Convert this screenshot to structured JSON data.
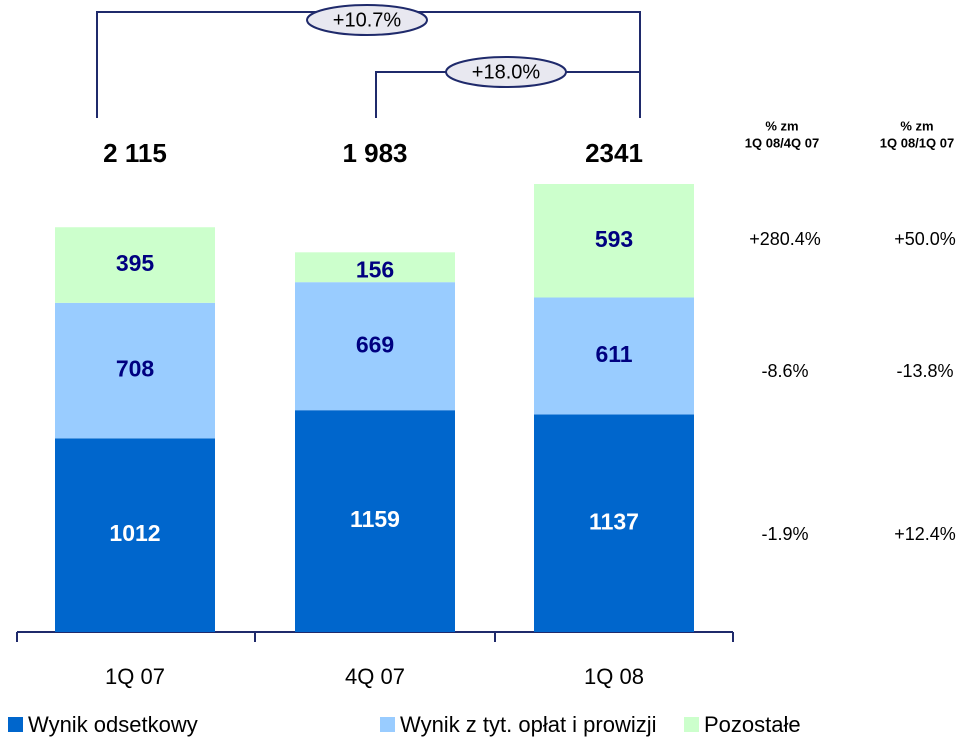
{
  "chart_data": {
    "type": "stacked_bar",
    "categories": [
      "1Q 07",
      "4Q 07",
      "1Q 08"
    ],
    "series": [
      {
        "name": "Wynik odsetkowy",
        "color": "#0066cc",
        "values": [
          1012,
          1159,
          1137
        ]
      },
      {
        "name": "Wynik z tyt. opłat i prowizji",
        "color": "#99ccff",
        "values": [
          708,
          669,
          611
        ]
      },
      {
        "name": "Pozostałe",
        "color": "#ccffcc",
        "values": [
          395,
          156,
          593
        ]
      }
    ],
    "totals": [
      "2 115",
      "1 983",
      "2341"
    ],
    "annotations": [
      "+10.7%",
      "+18.0%"
    ],
    "change_table": {
      "headers": [
        [
          "% zm",
          "1Q 08/4Q 07"
        ],
        [
          "% zm",
          "1Q 08/1Q 07"
        ]
      ],
      "rows": [
        [
          "+280.4%",
          "+50.0%"
        ],
        [
          "-8.6%",
          "-13.8%"
        ],
        [
          "-1.9%",
          "+12.4%"
        ]
      ]
    }
  }
}
